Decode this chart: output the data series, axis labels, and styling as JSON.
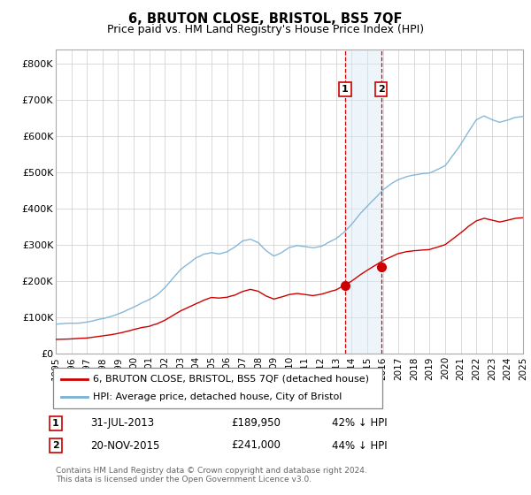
{
  "title": "6, BRUTON CLOSE, BRISTOL, BS5 7QF",
  "subtitle": "Price paid vs. HM Land Registry's House Price Index (HPI)",
  "title_fontsize": 10.5,
  "subtitle_fontsize": 9,
  "ylabel_ticks": [
    0,
    100000,
    200000,
    300000,
    400000,
    500000,
    600000,
    700000,
    800000
  ],
  "ylabel_labels": [
    "£0",
    "£100K",
    "£200K",
    "£300K",
    "£400K",
    "£500K",
    "£600K",
    "£700K",
    "£800K"
  ],
  "ylim": [
    0,
    840000
  ],
  "sale1_date": "31-JUL-2013",
  "sale1_price": 189950,
  "sale1_label": "1",
  "sale1_pct": "42% ↓ HPI",
  "sale1_year": 2013.58,
  "sale2_date": "20-NOV-2015",
  "sale2_price": 241000,
  "sale2_label": "2",
  "sale2_pct": "44% ↓ HPI",
  "sale2_year": 2015.9,
  "hpi_color": "#7ab0d4",
  "price_color": "#cc0000",
  "shade_color": "#daeaf5",
  "marker_box_color": "#cc0000",
  "grid_color": "#cccccc",
  "footnote": "Contains HM Land Registry data © Crown copyright and database right 2024.\nThis data is licensed under the Open Government Licence v3.0.",
  "legend_label_red": "6, BRUTON CLOSE, BRISTOL, BS5 7QF (detached house)",
  "legend_label_blue": "HPI: Average price, detached house, City of Bristol",
  "xticks": [
    1995,
    1996,
    1997,
    1998,
    1999,
    2000,
    2001,
    2002,
    2003,
    2004,
    2005,
    2006,
    2007,
    2008,
    2009,
    2010,
    2011,
    2012,
    2013,
    2014,
    2015,
    2016,
    2017,
    2018,
    2019,
    2020,
    2021,
    2022,
    2023,
    2024,
    2025
  ]
}
